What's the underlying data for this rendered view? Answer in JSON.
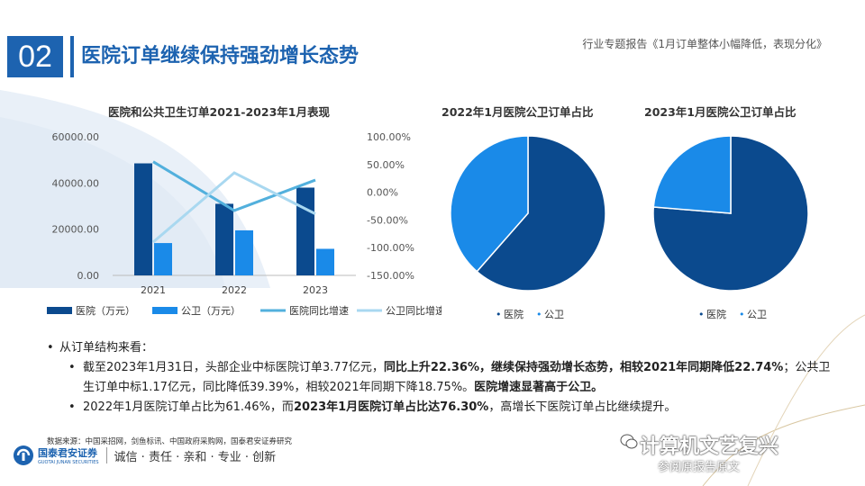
{
  "header": {
    "section_number": "02",
    "title": "医院订单继续保持强劲增长态势",
    "report_name": "行业专题报告《1月订单整体小幅降低，表现分化》"
  },
  "chart_data": [
    {
      "type": "bar",
      "title": "医院和公共卫生订单2021-2023年1月表现",
      "categories": [
        "2021",
        "2022",
        "2023"
      ],
      "series": [
        {
          "name": "医院（万元）",
          "kind": "bar",
          "axis": "left",
          "values": [
            48500,
            31000,
            38000
          ],
          "color": "#0b4a8e"
        },
        {
          "name": "公卫（万元）",
          "kind": "bar",
          "axis": "left",
          "values": [
            14000,
            19500,
            11500
          ],
          "color": "#1a8ae8"
        },
        {
          "name": "医院同比增速",
          "kind": "line",
          "axis": "right",
          "values": [
            55,
            -33,
            22
          ],
          "color": "#52b0dd"
        },
        {
          "name": "公卫同比增速",
          "kind": "line",
          "axis": "right",
          "values": [
            -90,
            35,
            -39
          ],
          "color": "#a9d8f0"
        }
      ],
      "left_axis": {
        "min": 0,
        "max": 60000,
        "ticks": [
          "0.00",
          "20000.00",
          "40000.00",
          "60000.00"
        ]
      },
      "right_axis": {
        "min": -150,
        "max": 100,
        "ticks": [
          "-150.00%",
          "-100.00%",
          "-50.00%",
          "0.00%",
          "50.00%",
          "100.00%"
        ]
      },
      "legend_position": "bottom"
    },
    {
      "type": "pie",
      "title": "2022年1月医院公卫订单占比",
      "slices": [
        {
          "name": "医院",
          "value": 61.46,
          "color": "#0b4a8e"
        },
        {
          "name": "公卫",
          "value": 38.54,
          "color": "#1a8ae8"
        }
      ],
      "legend_position": "bottom"
    },
    {
      "type": "pie",
      "title": "2023年1月医院公卫订单占比",
      "slices": [
        {
          "name": "医院",
          "value": 76.3,
          "color": "#0b4a8e"
        },
        {
          "name": "公卫",
          "value": 23.7,
          "color": "#1a8ae8"
        }
      ],
      "legend_position": "bottom"
    }
  ],
  "bullets": {
    "b1": "从订单结构来看：",
    "b2": {
      "t1": "截至2023年1月31日，头部企业中标医院订单3.77亿元，",
      "t2": "同比上升22.36%，继续保持强劲增长态势，相较2021年同期降低22.74%",
      "t3": "；公共卫生订单中标1.17亿元，同比降低39.39%，相较2021年同期下降18.75%。",
      "t4": "医院增速显著高于公卫。"
    },
    "b3": {
      "t1": "2022年1月医院订单占比为61.46%，而",
      "t2": "2023年1月医院订单占比达76.30%",
      "t3": "，高增长下医院订单占比继续提升。"
    }
  },
  "footer": {
    "source": "数据来源：中国采招网，剑鱼标讯、中国政府采购网，国泰君安证券研究",
    "logo_cn": "国泰君安证券",
    "logo_en": "GUOTAI JUNAN SECURITIES",
    "slogan": "诚信 · 责任 · 亲和 · 专业 · 创新",
    "watermark_main": "计算机文艺复兴",
    "watermark_sub": "参阅原报告原文"
  }
}
